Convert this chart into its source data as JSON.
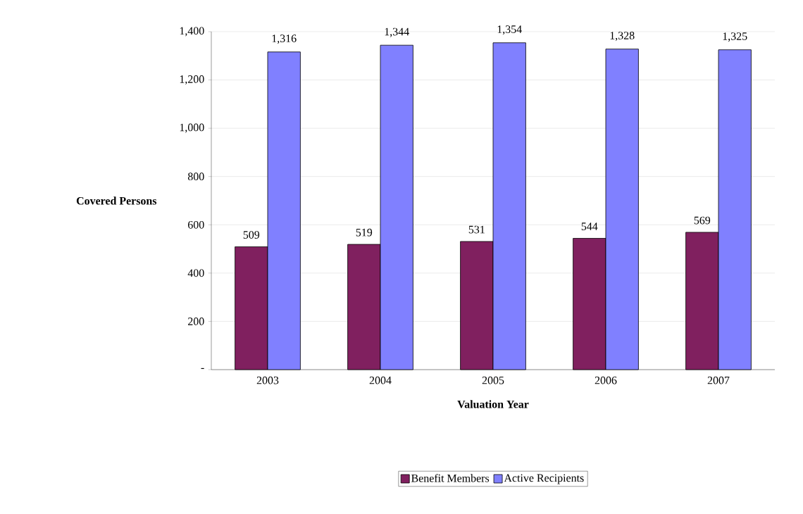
{
  "chart_data": {
    "type": "bar",
    "xlabel": "Valuation Year",
    "ylabel": "Covered Persons",
    "categories": [
      "2003",
      "2004",
      "2005",
      "2006",
      "2007"
    ],
    "series": [
      {
        "name": "Benefit Members",
        "color": "#80205f",
        "values": [
          509,
          519,
          531,
          544,
          569
        ],
        "value_labels": [
          "509",
          "519",
          "531",
          "544",
          "569"
        ]
      },
      {
        "name": "Active  Recipients",
        "color": "#8080ff",
        "values": [
          1316,
          1344,
          1354,
          1328,
          1325
        ],
        "value_labels": [
          "1,316",
          "1,344",
          "1,354",
          "1,328",
          "1,325"
        ]
      }
    ],
    "ylim": [
      0,
      1400
    ],
    "yticks": [
      {
        "value": 0,
        "label": "-"
      },
      200,
      400,
      600,
      800,
      {
        "value": 1000,
        "label": "1,000"
      },
      {
        "value": 1200,
        "label": "1,200"
      },
      {
        "value": 1400,
        "label": "1,400"
      }
    ],
    "grid": "y",
    "legend": "bottom"
  }
}
